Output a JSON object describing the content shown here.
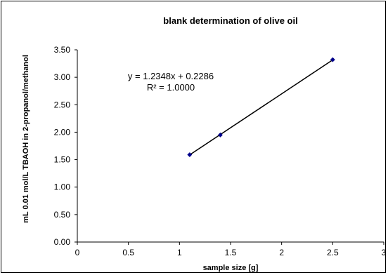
{
  "chart_data": {
    "type": "scatter",
    "title": "blank determination of olive oil",
    "xlabel": "sample size [g]",
    "ylabel": "mL 0.01 mol/L TBAOH in 2-propanol/methanol",
    "xlim": [
      0,
      3
    ],
    "ylim": [
      0,
      3.5
    ],
    "x_ticks": [
      "0",
      "0.5",
      "1",
      "1.5",
      "2",
      "2.5",
      "3"
    ],
    "y_ticks": [
      "0.00",
      "0.50",
      "1.00",
      "1.50",
      "2.00",
      "2.50",
      "3.00",
      "3.50"
    ],
    "grid": false,
    "series": [
      {
        "x": [
          1.1,
          1.4,
          2.5
        ],
        "y": [
          1.59,
          1.95,
          3.32
        ]
      }
    ],
    "trendline": {
      "type": "linear",
      "slope": 1.2348,
      "intercept": 0.2286,
      "x_range": [
        1.1,
        2.5
      ]
    },
    "annotations": {
      "equation": "y = 1.2348x + 0.2286",
      "r_squared": "R² = 1.0000"
    },
    "colors": {
      "marker": "#00008b",
      "line": "#000000"
    }
  }
}
